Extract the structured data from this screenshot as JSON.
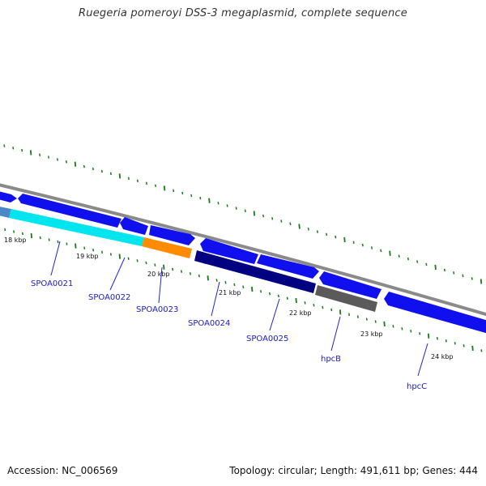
{
  "title": "Ruegeria pomeroyi DSS-3 megaplasmid, complete sequence",
  "footer": {
    "accession": "Accession: NC_006569",
    "summary": "Topology: circular; Length: 491,611 bp; Genes: 444"
  },
  "colors": {
    "background": "#ffffff",
    "backbone": "#8a8a8a",
    "tick": "#1a7a1a",
    "gene_blue": "#1010ee",
    "gene_label": "#1a1acc",
    "leader_line": "#2222dd",
    "kbp_label": "#111111"
  },
  "scale": {
    "kbp_labels": [
      {
        "kbp": 18,
        "label": "18 kbp"
      },
      {
        "kbp": 19,
        "label": "19 kbp"
      },
      {
        "kbp": 20,
        "label": "20 kbp"
      },
      {
        "kbp": 21,
        "label": "21 kbp"
      },
      {
        "kbp": 22,
        "label": "22 kbp"
      },
      {
        "kbp": 23,
        "label": "23 kbp"
      },
      {
        "kbp": 24,
        "label": "24 kbp"
      }
    ]
  },
  "genes": [
    {
      "name": "SPOA0021",
      "label": "SPOA0021",
      "color": "#00e5ee"
    },
    {
      "name": "SPOA0022",
      "label": "SPOA0022",
      "color": "#ff8c00"
    },
    {
      "name": "SPOA0023",
      "label": "SPOA0023",
      "color": "#000080"
    },
    {
      "name": "SPOA0024",
      "label": "SPOA0024",
      "color": "#5a5a5a"
    },
    {
      "name": "SPOA0025",
      "label": "SPOA0025",
      "color": "#1010ee"
    },
    {
      "name": "hpcB",
      "label": "hpcB",
      "color": "#1010ee"
    },
    {
      "name": "hpcC",
      "label": "hpcC",
      "color": "#1010ee"
    }
  ]
}
